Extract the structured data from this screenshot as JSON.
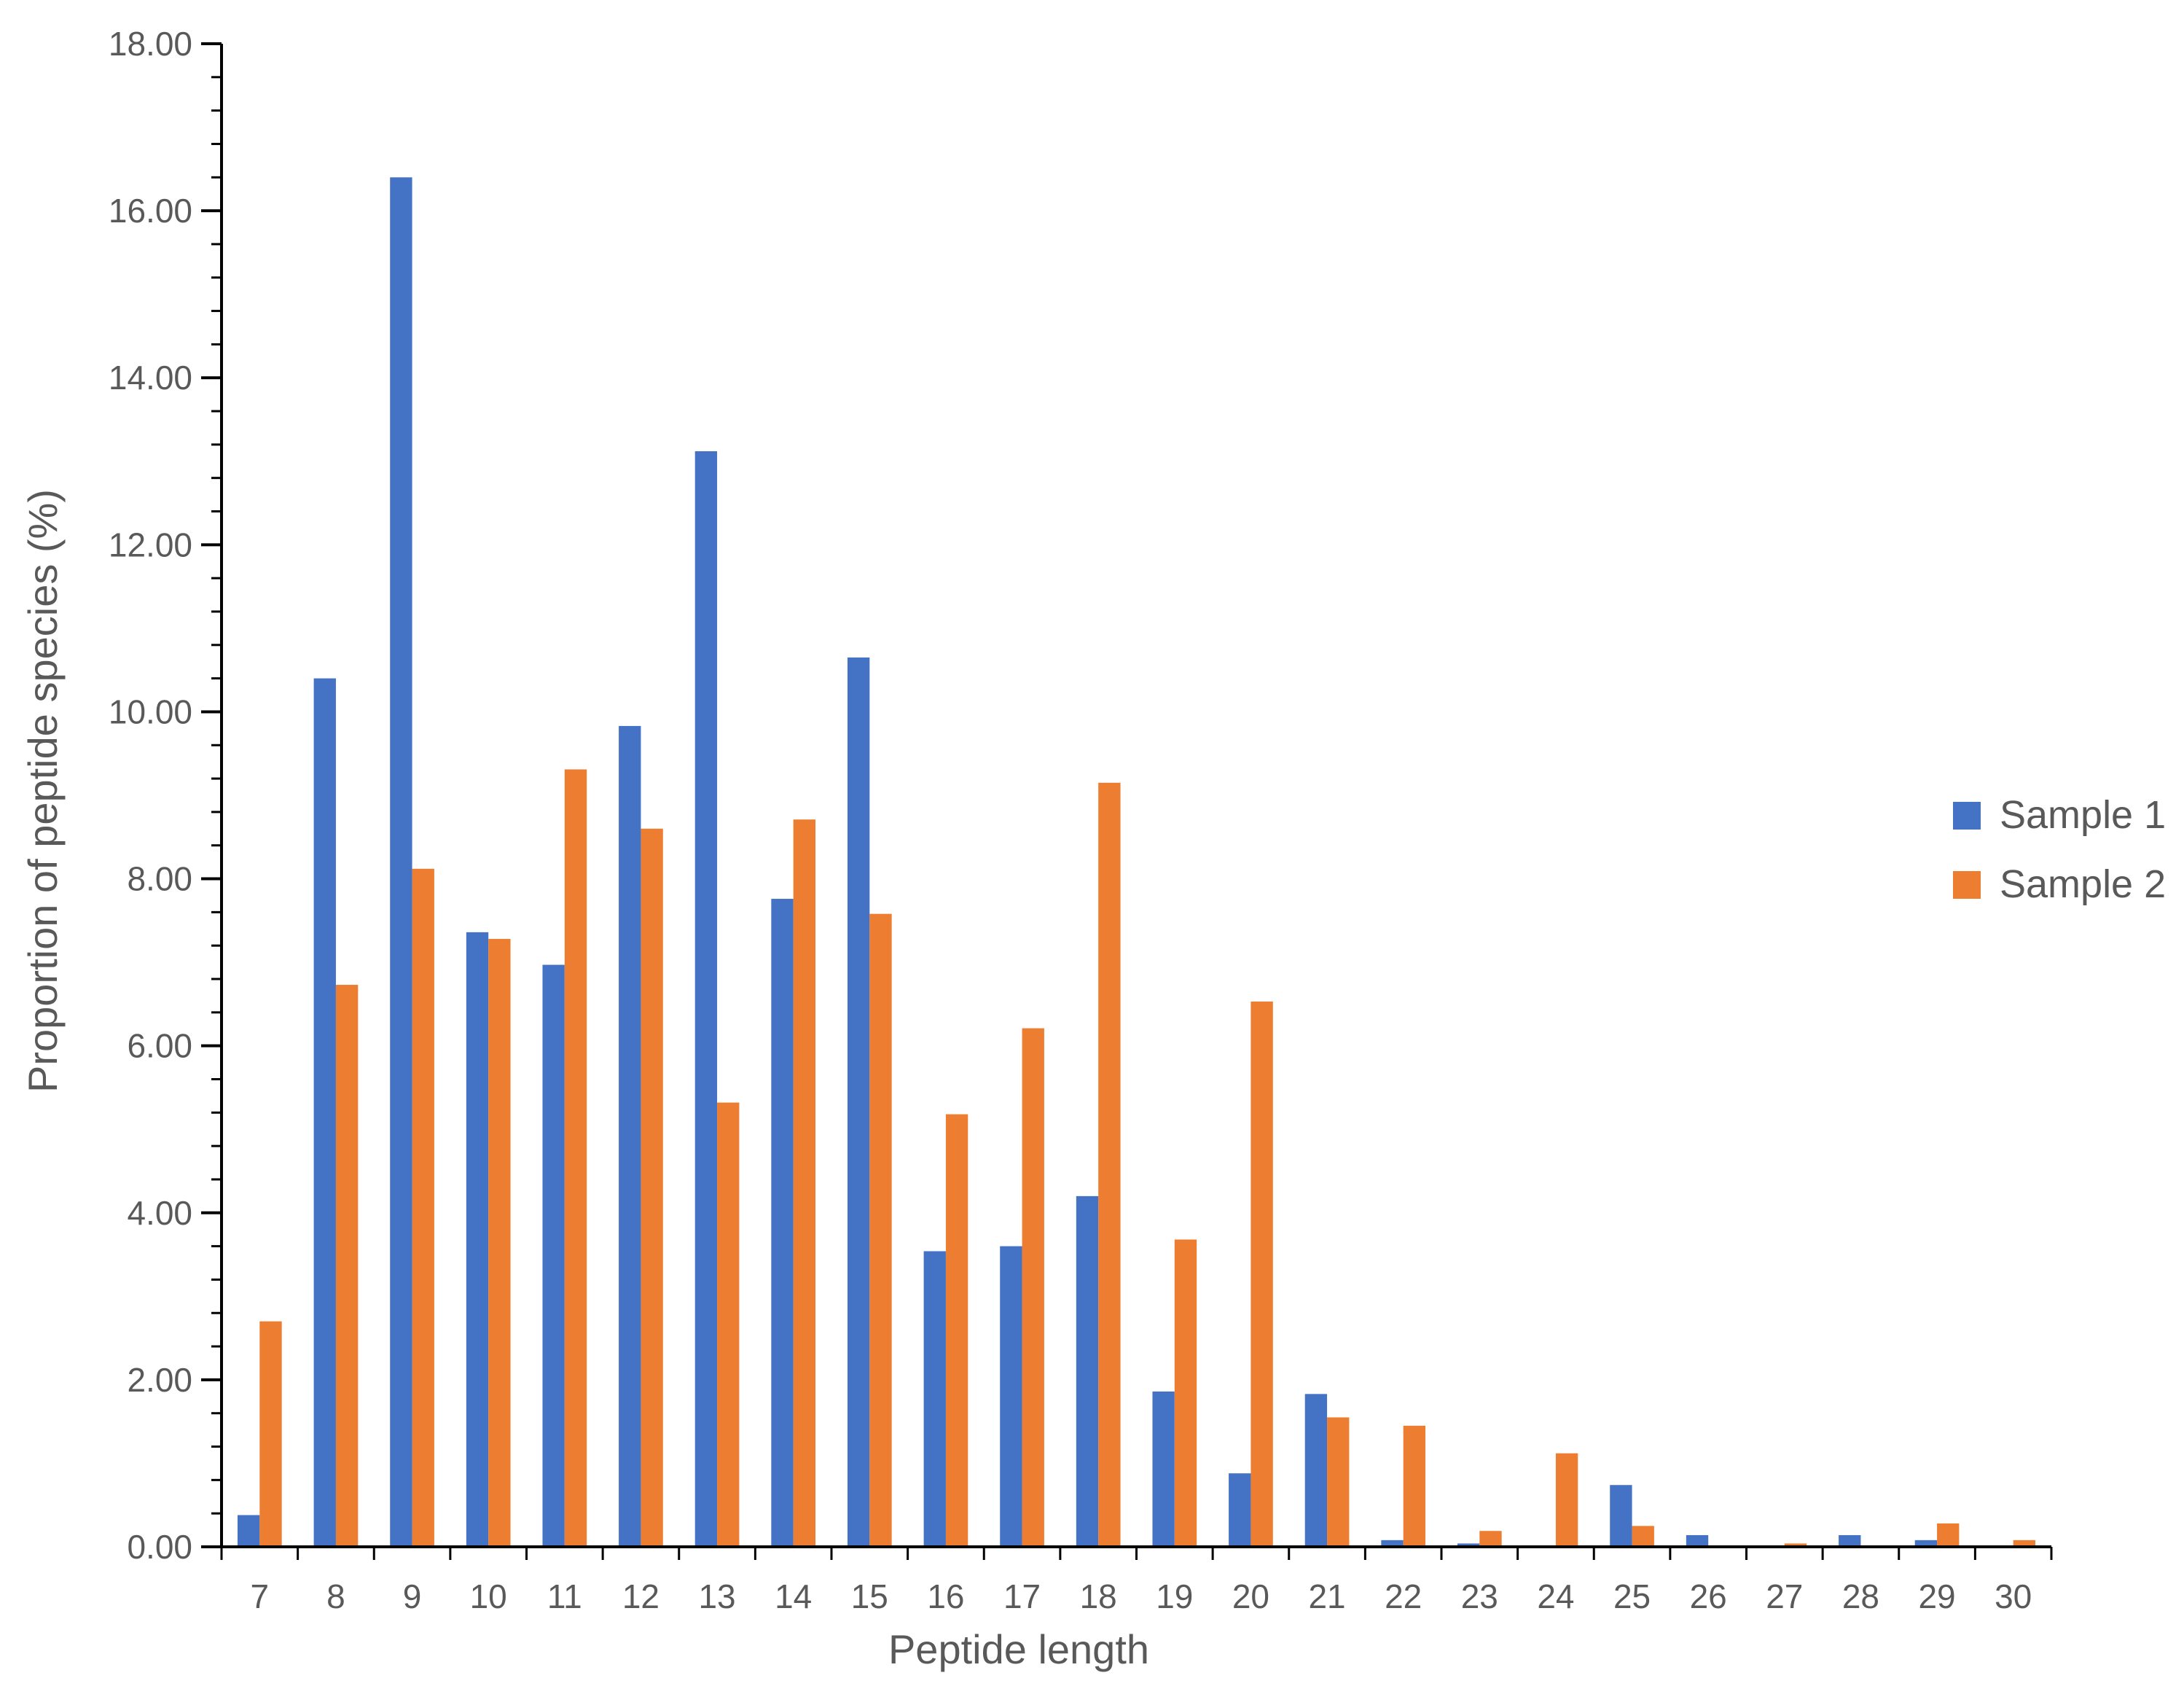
{
  "chart_data": {
    "type": "bar",
    "title": "",
    "xlabel": "Peptide length",
    "ylabel": "Proportion of peptide species (%)",
    "ylim": [
      0,
      18
    ],
    "ytick_step": 2,
    "ytick_decimals": 2,
    "grid": false,
    "legend_position": "right",
    "categories": [
      "7",
      "8",
      "9",
      "10",
      "11",
      "12",
      "13",
      "14",
      "15",
      "16",
      "17",
      "18",
      "19",
      "20",
      "21",
      "22",
      "23",
      "24",
      "25",
      "26",
      "27",
      "28",
      "29",
      "30"
    ],
    "series": [
      {
        "name": "Sample 1",
        "color": "#4472C4",
        "values": [
          0.38,
          10.4,
          16.4,
          7.36,
          6.97,
          9.83,
          13.12,
          7.76,
          10.65,
          3.54,
          3.6,
          4.2,
          1.86,
          0.88,
          1.83,
          0.08,
          0.04,
          0,
          0.74,
          0.14,
          0,
          0.14,
          0.08,
          0
        ]
      },
      {
        "name": "Sample 2",
        "color": "#ED7D31",
        "values": [
          2.7,
          6.73,
          8.12,
          7.28,
          9.31,
          8.6,
          5.32,
          8.71,
          7.58,
          5.18,
          6.21,
          9.15,
          3.68,
          6.53,
          1.55,
          1.45,
          0.19,
          1.12,
          0.25,
          0,
          0.04,
          0,
          0.28,
          0.08
        ]
      }
    ]
  }
}
